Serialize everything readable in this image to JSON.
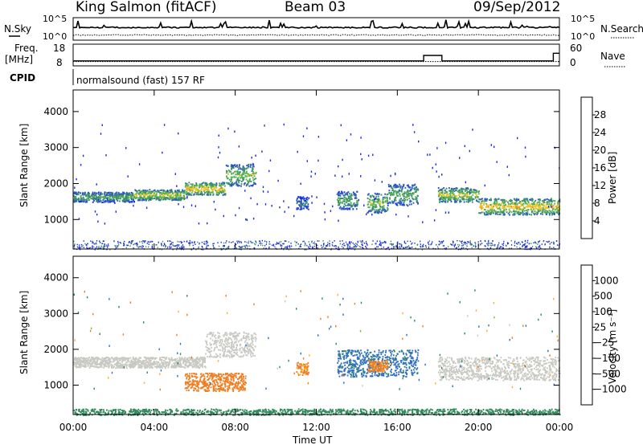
{
  "header": {
    "station": "King Salmon (fitACF)",
    "beam": "Beam 03",
    "date": "09/Sep/2012"
  },
  "noise_panel": {
    "left_label": "N.Sky",
    "left_ticks": [
      "10^5",
      "10^0"
    ],
    "right_label": "N.Search",
    "right_ticks": [
      "10^5",
      "10^0"
    ]
  },
  "freq_panel": {
    "left_label_line1": "Freq.",
    "left_label_line2": "[MHz]",
    "left_ticks": [
      "18",
      "8"
    ],
    "right_label": "Nave",
    "right_ticks": [
      "60",
      "0"
    ],
    "cpid_label": "CPID",
    "cpid_value": "normalsound (fast) 157 RF"
  },
  "range_axis": {
    "label": "Slant Range [km]",
    "ticks": [
      1000,
      2000,
      3000,
      4000
    ],
    "range": [
      180,
      4600
    ]
  },
  "time_axis": {
    "label": "Time UT",
    "ticks": [
      "00:00",
      "04:00",
      "08:00",
      "12:00",
      "16:00",
      "20:00",
      "00:00"
    ],
    "range_hours": [
      0,
      24
    ]
  },
  "power_scale": {
    "label": "Power [dB]",
    "ticks": [
      "4",
      "8",
      "12",
      "16",
      "20",
      "24",
      "28"
    ],
    "colors": [
      "#1a28e8",
      "#2c56c8",
      "#3b8e6c",
      "#57b14f",
      "#f2c229",
      "#ef8d22",
      "#e2441f",
      "#d60e0e"
    ]
  },
  "velocity_scale": {
    "label": "Velocity [m s⁻¹]",
    "ticks": [
      "1000",
      "500",
      "100",
      "25",
      "−25",
      "−100",
      "−500",
      "−1000"
    ],
    "colors": [
      "#1a3fd6",
      "#2f6fc4",
      "#2f8a5b",
      "#68c43e",
      "#c9c9c4",
      "#f5b32d",
      "#ef7c1f",
      "#e8431d",
      "#d80b0b"
    ]
  },
  "chart_data": {
    "type": "heatmap",
    "x_units": "hours UT",
    "y_units": "km",
    "power_bands": [
      {
        "t0": 0.0,
        "t1": 3.0,
        "r0": 1500,
        "r1": 1780,
        "db": 12
      },
      {
        "t0": 3.0,
        "t1": 5.5,
        "r0": 1550,
        "r1": 1850,
        "db": 16
      },
      {
        "t0": 5.5,
        "t1": 7.5,
        "r0": 1700,
        "r1": 2050,
        "db": 18
      },
      {
        "t0": 7.5,
        "t1": 9.0,
        "r0": 1950,
        "r1": 2550,
        "db": 14
      },
      {
        "t0": 11.0,
        "t1": 11.6,
        "r0": 1300,
        "r1": 1650,
        "db": 8
      },
      {
        "t0": 13.0,
        "t1": 14.0,
        "r0": 1300,
        "r1": 1800,
        "db": 12
      },
      {
        "t0": 14.5,
        "t1": 15.5,
        "r0": 1200,
        "r1": 1750,
        "db": 14
      },
      {
        "t0": 15.5,
        "t1": 17.0,
        "r0": 1400,
        "r1": 2000,
        "db": 12
      },
      {
        "t0": 18.0,
        "t1": 20.0,
        "r0": 1500,
        "r1": 1900,
        "db": 16
      },
      {
        "t0": 20.0,
        "t1": 24.0,
        "r0": 1150,
        "r1": 1600,
        "db": 18
      }
    ],
    "velocity_bands": [
      {
        "t0": 0.0,
        "t1": 6.5,
        "r0": 1500,
        "r1": 1800,
        "v": 0
      },
      {
        "t0": 6.5,
        "t1": 9.0,
        "r0": 1800,
        "r1": 2500,
        "v": 0
      },
      {
        "t0": 5.5,
        "t1": 8.5,
        "r0": 850,
        "r1": 1350,
        "v": -300
      },
      {
        "t0": 11.0,
        "t1": 11.6,
        "r0": 1300,
        "r1": 1650,
        "v": -150
      },
      {
        "t0": 13.0,
        "t1": 17.0,
        "r0": 1250,
        "r1": 2000,
        "v": 200
      },
      {
        "t0": 14.5,
        "t1": 15.5,
        "r0": 1400,
        "r1": 1700,
        "v": -200
      },
      {
        "t0": 18.0,
        "t1": 24.0,
        "r0": 1150,
        "r1": 1800,
        "v": 0
      },
      {
        "t0": 0.0,
        "t1": 24.0,
        "r0": 180,
        "r1": 350,
        "v": 80
      }
    ],
    "freq_mhz": {
      "x": [
        0,
        17.3,
        17.3,
        18.2,
        18.2,
        23.7,
        23.7,
        24
      ],
      "y": [
        10.5,
        10.5,
        13,
        13,
        10.5,
        10.5,
        14,
        14
      ]
    },
    "nave": {
      "x": [
        0,
        24
      ],
      "y": [
        12,
        12
      ]
    },
    "title": "",
    "xlabel": "Time UT",
    "ylabel": "Slant Range [km]"
  }
}
